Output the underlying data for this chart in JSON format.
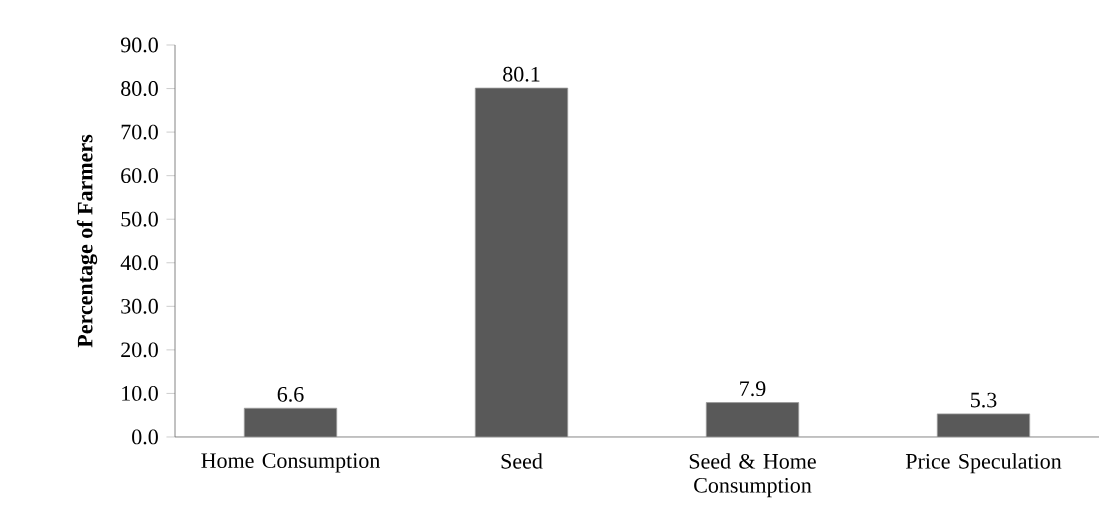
{
  "chart_data": {
    "type": "bar",
    "ylabel": "Percentage of Farmers",
    "categories": [
      "Home Consumption",
      "Seed",
      "Seed & Home Consumption",
      "Price Speculation"
    ],
    "values": [
      6.6,
      80.1,
      7.9,
      5.3
    ],
    "value_labels": [
      "6.6",
      "80.1",
      "7.9",
      "5.3"
    ],
    "color": "#595959",
    "ylim": [
      0,
      90
    ],
    "yticks": [
      {
        "value": 0,
        "label": "0.0"
      },
      {
        "value": 10,
        "label": "10.0"
      },
      {
        "value": 20,
        "label": "20.0"
      },
      {
        "value": 30,
        "label": "30.0"
      },
      {
        "value": 40,
        "label": "40.0"
      },
      {
        "value": 50,
        "label": "50.0"
      },
      {
        "value": 60,
        "label": "60.0"
      },
      {
        "value": 70,
        "label": "70.0"
      },
      {
        "value": 80,
        "label": "80.0"
      },
      {
        "value": 90,
        "label": "90.0"
      }
    ]
  }
}
